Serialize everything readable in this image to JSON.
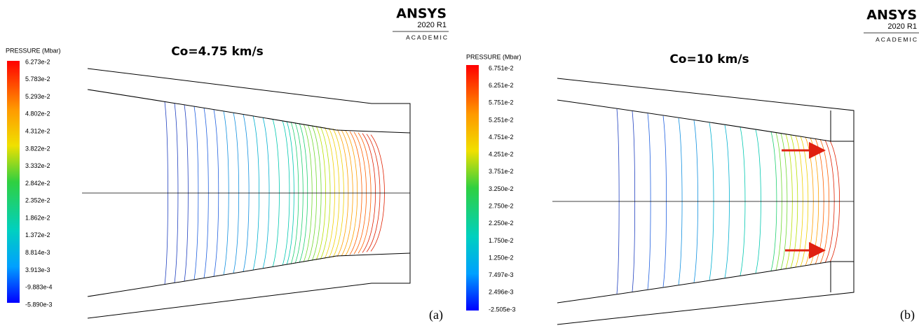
{
  "panels": [
    {
      "logo": {
        "name": "ANSYS",
        "version": "2020 R1",
        "edition": "ACADEMIC"
      },
      "legend_title": "PRESSURE (Mbar)",
      "legend_labels": [
        "6.273e-2",
        "5.783e-2",
        "5.293e-2",
        "4.802e-2",
        "4.312e-2",
        "3.822e-2",
        "3.332e-2",
        "2.842e-2",
        "2.352e-2",
        "1.862e-2",
        "1.372e-2",
        "8.814e-3",
        "3.913e-3",
        "-9.883e-4",
        "-5.890e-3"
      ],
      "title": "Co=4.75 km/s",
      "label": "(a)"
    },
    {
      "logo": {
        "name": "ANSYS",
        "version": "2020 R1",
        "edition": "ACADEMIC"
      },
      "legend_title": "PRESSURE (Mbar)",
      "legend_labels": [
        "6.751e-2",
        "6.251e-2",
        "5.751e-2",
        "5.251e-2",
        "4.751e-2",
        "4.251e-2",
        "3.751e-2",
        "3.250e-2",
        "2.750e-2",
        "2.250e-2",
        "1.750e-2",
        "1.250e-2",
        "7.497e-3",
        "2.496e-3",
        "-2.505e-3"
      ],
      "title": "Co=10 km/s",
      "label": "(b)"
    }
  ]
}
